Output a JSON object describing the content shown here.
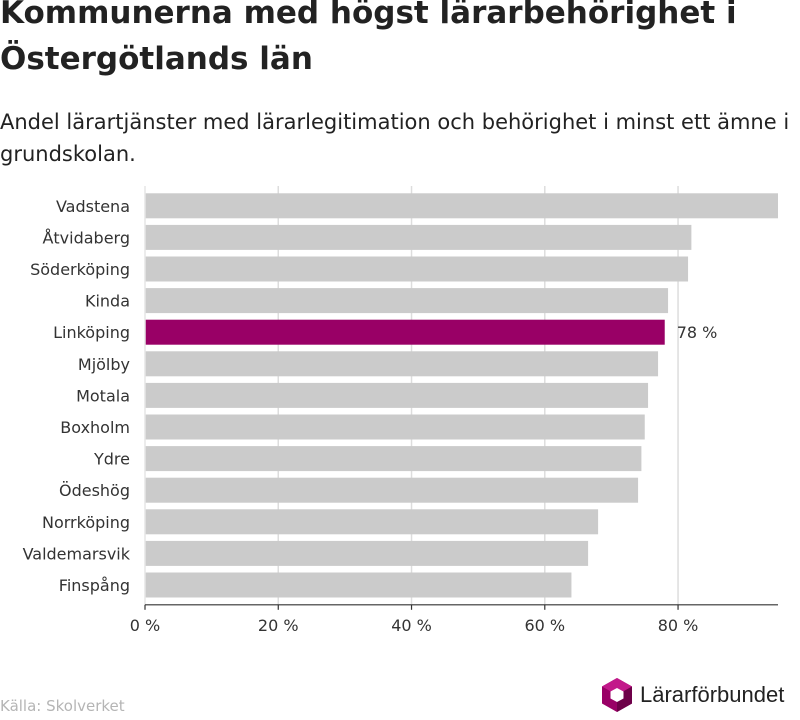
{
  "title": "Kommunerna med högst lärarbehörighet i Östergötlands län",
  "subtitle": "Andel lärartjänster med lärarlegitimation och behörighet i minst ett ämne i grundskolan.",
  "source": "Källa: Skolverket",
  "logo": {
    "name": "Lärarförbundet",
    "icon": "hexagon-logo-icon"
  },
  "colors": {
    "bar": "#cbcbcb",
    "highlight": "#990066",
    "grid": "#dddddd",
    "axis": "#333333"
  },
  "chart_data": {
    "type": "bar",
    "orientation": "horizontal",
    "categories": [
      "Vadstena",
      "Åtvidaberg",
      "Söderköping",
      "Kinda",
      "Linköping",
      "Mjölby",
      "Motala",
      "Boxholm",
      "Ydre",
      "Ödeshög",
      "Norrköping",
      "Valdemarsvik",
      "Finspång"
    ],
    "values": [
      95,
      82,
      81.5,
      78.5,
      78,
      77,
      75.5,
      75,
      74.5,
      74,
      68,
      66.5,
      64
    ],
    "highlight": "Linköping",
    "data_labels": [
      {
        "category": "Linköping",
        "text": "78 %"
      }
    ],
    "xlim": [
      0,
      95
    ],
    "xticks": [
      0,
      20,
      40,
      60,
      80
    ],
    "xtick_labels": [
      "0 %",
      "20 %",
      "40 %",
      "60 %",
      "80 %"
    ],
    "grid": true
  }
}
